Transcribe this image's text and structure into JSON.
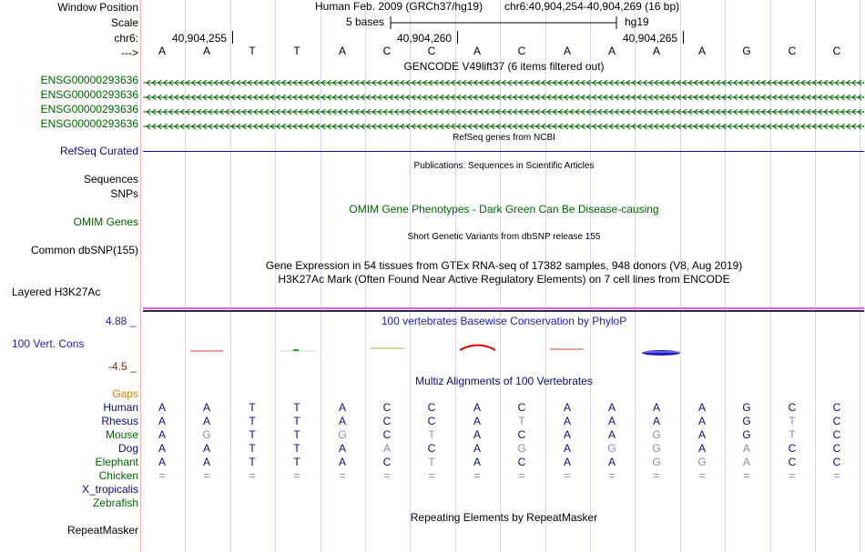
{
  "colors": {
    "gencode_green": "#006400",
    "refseq_navy": "#0c0c78",
    "phylop_blue": "#1c1cb8",
    "conservation_maroon": "#7a2a1a",
    "gaps_orange": "#d08000",
    "omim_green": "#006400",
    "guide_line": "#d8d8f0",
    "pink_border": "#f08080",
    "magenta_bar": "#e060e0"
  },
  "header": {
    "window_position_label": "Window Position",
    "scale_label": "Scale",
    "chrom_label": "chr6:",
    "strand_label": "--->",
    "assembly": "Human Feb. 2009 (GRCh37/hg19)",
    "position": "chr6:40,904,254-40,904,269 (16 bp)",
    "scale_text": "5 bases",
    "scale_db": "hg19",
    "coords": [
      "40,904,255",
      "40,904,260",
      "40,904,265"
    ]
  },
  "bases": [
    "A",
    "A",
    "T",
    "T",
    "A",
    "C",
    "C",
    "A",
    "C",
    "A",
    "A",
    "A",
    "A",
    "G",
    "C",
    "C"
  ],
  "tracks": {
    "gencode_title": "GENCODE V49lift37 (6 items filtered out)",
    "gencode_items": [
      "ENSG00000293636",
      "ENSG00000293636",
      "ENSG00000293636",
      "ENSG00000293636"
    ],
    "refseq_title": "RefSeq genes from NCBI",
    "refseq_label": "RefSeq Curated",
    "publications_title": "Publications: Sequences in Scientific Articles",
    "sequences_label": "Sequences",
    "snps_label": "SNPs",
    "omim_title": "OMIM Gene Phenotypes - Dark Green Can Be Disease-causing",
    "omim_label": "OMIM Genes",
    "dbsnp_title": "Short Genetic Variants from dbSNP release 155",
    "dbsnp_label": "Common dbSNP(155)",
    "gtex_title": "Gene Expression in 54 tissues from GTEx RNA-seq of 17382 samples, 948 donors (V8, Aug 2019)",
    "h3k27ac_title": "H3K27Ac Mark (Often Found Near Active Regulatory Elements) on 7 cell lines from ENCODE",
    "h3k27ac_label": "Layered H3K27Ac",
    "phylop_title": "100 vertebrates Basewise Conservation by PhyloP",
    "cons_label": "100 Vert. Cons",
    "cons_max": "4.88 _",
    "cons_min": "-4.5 _",
    "multiz_title": "Multiz Alignments of 100 Vertebrates",
    "gaps_label": "Gaps",
    "repeatmasker_title": "Repeating Elements by RepeatMasker",
    "repeatmasker_label": "RepeatMasker"
  },
  "alignment": [
    {
      "species": "Human",
      "color": "#0c0c78",
      "bases": [
        "A",
        "A",
        "T",
        "T",
        "A",
        "C",
        "C",
        "A",
        "C",
        "A",
        "A",
        "A",
        "A",
        "G",
        "C",
        "C"
      ]
    },
    {
      "species": "Rhesus",
      "color": "#0c0c78",
      "bases": [
        "A",
        "A",
        "T",
        "T",
        "A",
        "C",
        "C",
        "A",
        "T",
        "A",
        "A",
        "A",
        "A",
        "G",
        "T",
        "C"
      ]
    },
    {
      "species": "Mouse",
      "color": "#006400",
      "bases": [
        "A",
        "G",
        "T",
        "T",
        "G",
        "C",
        "T",
        "A",
        "C",
        "A",
        "A",
        "G",
        "A",
        "G",
        "T",
        "C"
      ]
    },
    {
      "species": "Dog",
      "color": "#0c0c78",
      "bases": [
        "A",
        "A",
        "T",
        "T",
        "A",
        "A",
        "C",
        "A",
        "G",
        "A",
        "G",
        "G",
        "A",
        "A",
        "C",
        "C"
      ]
    },
    {
      "species": "Elephant",
      "color": "#006400",
      "bases": [
        "A",
        "A",
        "T",
        "T",
        "A",
        "C",
        "T",
        "A",
        "C",
        "A",
        "A",
        "G",
        "G",
        "A",
        "C",
        "C"
      ]
    },
    {
      "species": "Chicken",
      "color": "#006400",
      "bases": [
        "=",
        "=",
        "=",
        "=",
        "=",
        "=",
        "=",
        "=",
        "=",
        "=",
        "=",
        "=",
        "=",
        "=",
        "=",
        "="
      ]
    },
    {
      "species": "X_tropicalis",
      "color": "#0c0c78",
      "bases": []
    },
    {
      "species": "Zebrafish",
      "color": "#006400",
      "bases": []
    }
  ]
}
